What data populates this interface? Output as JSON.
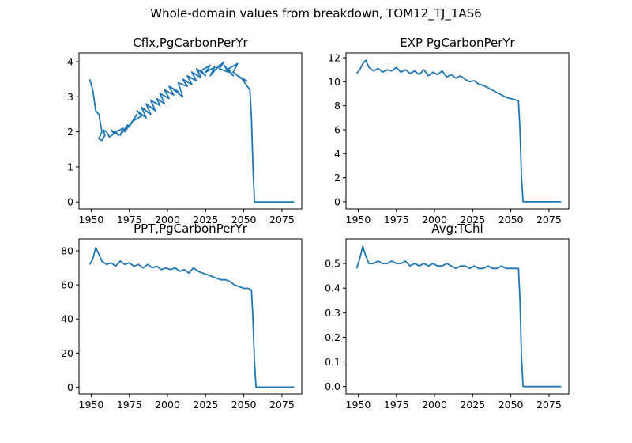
{
  "figure": {
    "suptitle": "Whole-domain values from breakdown, TOM12_TJ_1AS6",
    "line_color": "#1f77b4"
  },
  "chart_data": [
    {
      "type": "line",
      "title": "Cflx,PgCarbonPerYr",
      "xlim": [
        1942,
        2088
      ],
      "ylim": [
        -0.2,
        4.25
      ],
      "xticks": [
        1950,
        1975,
        2000,
        2025,
        2050,
        2075
      ],
      "yticks": [
        0,
        1,
        2,
        3,
        4
      ],
      "x": [
        1949,
        1951,
        1953,
        1955,
        1957,
        1955,
        1957,
        1959,
        1958,
        1960,
        1962,
        1965,
        1963,
        1968,
        1966,
        1971,
        1969,
        1974,
        1972,
        1977,
        1975,
        1980,
        1977,
        1983,
        1980,
        1986,
        1983,
        1989,
        1986,
        1992,
        1989,
        1995,
        1993,
        1998,
        1995,
        2001,
        1998,
        2004,
        2001,
        2007,
        2004,
        2010,
        2007,
        2013,
        2010,
        2016,
        2013,
        2019,
        2016,
        2022,
        2019,
        2025,
        2022,
        2028,
        2025,
        2031,
        2028,
        2034,
        2031,
        2037,
        2034,
        2040,
        2037,
        2043,
        2040,
        2046,
        2043,
        2049,
        2046,
        2052,
        2049,
        2054,
        2055,
        2056,
        2057,
        2058,
        2059,
        2060,
        2061,
        2062,
        2063,
        2065,
        2070,
        2075,
        2080,
        2083
      ],
      "y": [
        3.5,
        3.2,
        2.6,
        2.5,
        2.0,
        1.8,
        1.75,
        1.9,
        2.05,
        2.0,
        1.85,
        1.95,
        2.05,
        1.9,
        2.0,
        2.1,
        1.9,
        2.2,
        2.0,
        2.3,
        2.15,
        2.5,
        2.3,
        2.45,
        2.6,
        2.4,
        2.7,
        2.5,
        2.8,
        2.6,
        2.9,
        2.75,
        2.95,
        2.8,
        3.1,
        2.95,
        3.2,
        3.05,
        3.3,
        3.15,
        3.2,
        3.0,
        3.4,
        3.3,
        3.5,
        3.35,
        3.6,
        3.45,
        3.7,
        3.55,
        3.8,
        3.6,
        3.75,
        3.9,
        3.7,
        3.85,
        3.6,
        3.9,
        3.75,
        4.0,
        3.8,
        3.7,
        3.9,
        3.6,
        3.8,
        3.95,
        3.7,
        3.5,
        3.6,
        3.45,
        3.5,
        3.2,
        2.4,
        1.0,
        0.0,
        0.0,
        0.0,
        0.0,
        0.0,
        0.0,
        0.0,
        0.0,
        0.0,
        0.0,
        0.0,
        0.0
      ]
    },
    {
      "type": "line",
      "title": "EXP PgCarbonPerYr",
      "xlim": [
        1942,
        2088
      ],
      "ylim": [
        -0.6,
        12.4
      ],
      "xticks": [
        1950,
        1975,
        2000,
        2025,
        2050,
        2075
      ],
      "yticks": [
        0,
        2,
        4,
        6,
        8,
        10,
        12
      ],
      "x": [
        1949,
        1951,
        1953,
        1955,
        1957,
        1960,
        1963,
        1966,
        1969,
        1972,
        1975,
        1978,
        1981,
        1984,
        1987,
        1990,
        1993,
        1996,
        1999,
        2002,
        2005,
        2008,
        2011,
        2014,
        2017,
        2020,
        2023,
        2026,
        2029,
        2032,
        2035,
        2038,
        2041,
        2044,
        2047,
        2050,
        2053,
        2055,
        2056,
        2057,
        2058,
        2060,
        2063,
        2066,
        2070,
        2075,
        2080,
        2083
      ],
      "y": [
        10.7,
        11.0,
        11.5,
        11.8,
        11.2,
        10.9,
        11.1,
        10.8,
        11.0,
        10.9,
        11.2,
        10.8,
        11.0,
        10.7,
        10.9,
        10.6,
        11.0,
        10.5,
        10.8,
        10.6,
        10.9,
        10.4,
        10.6,
        10.3,
        10.5,
        10.2,
        10.0,
        10.1,
        9.8,
        9.7,
        9.5,
        9.3,
        9.1,
        8.9,
        8.7,
        8.6,
        8.5,
        8.4,
        6.0,
        2.0,
        0.0,
        0.0,
        0.0,
        0.0,
        0.0,
        0.0,
        0.0,
        0.0
      ]
    },
    {
      "type": "line",
      "title": "PPT,PgCarbonPerYr",
      "xlim": [
        1942,
        2088
      ],
      "ylim": [
        -4,
        87
      ],
      "xticks": [
        1950,
        1975,
        2000,
        2025,
        2050,
        2075
      ],
      "yticks": [
        0,
        20,
        40,
        60,
        80
      ],
      "x": [
        1949,
        1951,
        1953,
        1955,
        1957,
        1960,
        1963,
        1966,
        1969,
        1972,
        1975,
        1978,
        1981,
        1984,
        1987,
        1990,
        1993,
        1996,
        1999,
        2002,
        2005,
        2008,
        2011,
        2014,
        2017,
        2020,
        2023,
        2026,
        2029,
        2032,
        2035,
        2038,
        2041,
        2044,
        2047,
        2050,
        2053,
        2055,
        2056,
        2057,
        2058,
        2060,
        2063,
        2066,
        2070,
        2075,
        2080,
        2083
      ],
      "y": [
        72,
        75,
        82,
        78,
        74,
        72,
        73,
        71,
        74,
        72,
        73,
        71,
        72,
        70,
        72,
        70,
        71,
        69,
        70,
        69,
        70,
        68,
        69,
        67,
        70,
        68,
        67,
        66,
        65,
        64,
        63,
        63,
        62,
        60,
        59,
        58,
        58,
        57,
        40,
        15,
        0,
        0,
        0,
        0,
        0,
        0,
        0,
        0
      ]
    },
    {
      "type": "line",
      "title": "Avg:TChl",
      "xlim": [
        1942,
        2088
      ],
      "ylim": [
        -0.03,
        0.6
      ],
      "xticks": [
        1950,
        1975,
        2000,
        2025,
        2050,
        2075
      ],
      "yticks": [
        0.0,
        0.1,
        0.2,
        0.3,
        0.4,
        0.5
      ],
      "x": [
        1949,
        1951,
        1953,
        1955,
        1957,
        1960,
        1963,
        1966,
        1969,
        1972,
        1975,
        1978,
        1981,
        1984,
        1987,
        1990,
        1993,
        1996,
        1999,
        2002,
        2005,
        2008,
        2011,
        2014,
        2017,
        2020,
        2023,
        2026,
        2029,
        2032,
        2035,
        2038,
        2041,
        2044,
        2047,
        2050,
        2053,
        2055,
        2056,
        2057,
        2058,
        2060,
        2063,
        2066,
        2070,
        2075,
        2080,
        2083
      ],
      "y": [
        0.48,
        0.52,
        0.57,
        0.53,
        0.5,
        0.5,
        0.51,
        0.5,
        0.5,
        0.51,
        0.5,
        0.5,
        0.51,
        0.49,
        0.5,
        0.49,
        0.5,
        0.49,
        0.5,
        0.49,
        0.49,
        0.5,
        0.49,
        0.48,
        0.49,
        0.49,
        0.48,
        0.49,
        0.48,
        0.48,
        0.49,
        0.48,
        0.48,
        0.49,
        0.48,
        0.48,
        0.48,
        0.48,
        0.35,
        0.12,
        0.0,
        0.0,
        0.0,
        0.0,
        0.0,
        0.0,
        0.0,
        0.0
      ]
    }
  ]
}
